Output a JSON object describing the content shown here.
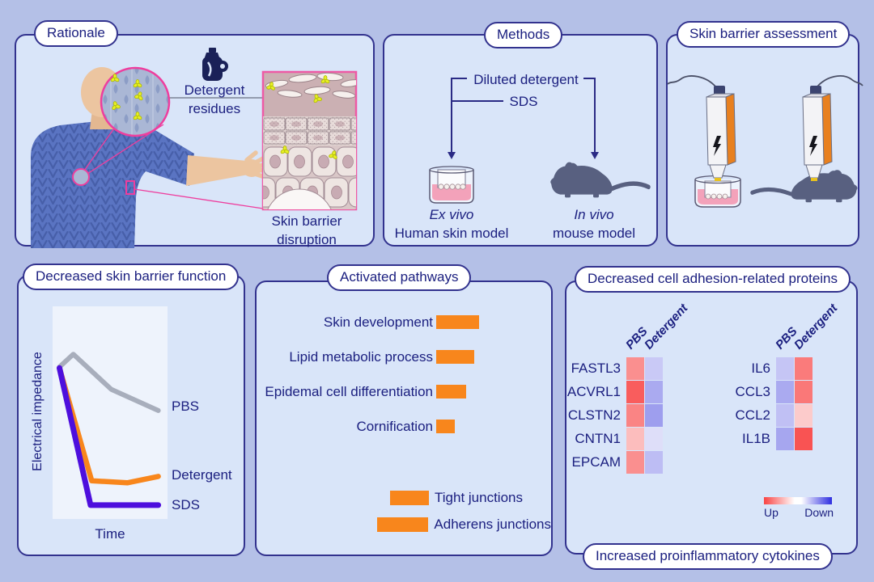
{
  "colors": {
    "background": "#b4c0e7",
    "panel": "#d9e5f9",
    "border": "#32328e",
    "ink": "#1c2080",
    "pink": "#ee3e9e",
    "orange": "#f8861c",
    "sds_purple": "#4d0edd",
    "pbs_gray": "#a8aebc",
    "mouse": "#586080",
    "device_orange": "#e8801f",
    "liquid_pink": "#f3a2ba",
    "residue_yellow": "#e7ee27"
  },
  "panels": {
    "rationale": {
      "title": "Rationale",
      "label_lines": [
        "Detergent",
        "residues"
      ],
      "caption_lines": [
        "Skin barrier",
        "disruption"
      ]
    },
    "methods": {
      "title": "Methods",
      "treatment1": "Diluted detergent",
      "treatment2": "SDS",
      "ex_lines": [
        "Ex vivo",
        "Human skin model"
      ],
      "in_lines": [
        "In vivo",
        "mouse model"
      ]
    },
    "assessment": {
      "title": "Skin barrier assessment"
    },
    "impedance": {
      "title": "Decreased skin barrier function"
    },
    "pathways": {
      "title": "Activated pathways"
    },
    "proteins": {
      "title": "Decreased cell adhesion-related proteins",
      "footer": "Increased proinflammatory cytokines"
    }
  },
  "chart_data": [
    {
      "id": "impedance",
      "type": "line",
      "title": "Decreased skin barrier function",
      "xlabel": "Time",
      "ylabel": "Electrical impedance",
      "axes_note": "qualitative axes, no tick labels; x and y normalized 0-1",
      "legend_position": "right of lines",
      "series": [
        {
          "name": "PBS",
          "color": "#a8aebc",
          "stroke_width": 6,
          "x": [
            0.06,
            0.18,
            0.51,
            0.92
          ],
          "y": [
            0.715,
            0.775,
            0.61,
            0.51
          ]
        },
        {
          "name": "Detergent",
          "color": "#f8861c",
          "stroke_width": 6.5,
          "x": [
            0.06,
            0.34,
            0.65,
            0.92
          ],
          "y": [
            0.71,
            0.18,
            0.17,
            0.2
          ]
        },
        {
          "name": "SDS",
          "color": "#4d0edd",
          "stroke_width": 7,
          "x": [
            0.06,
            0.33,
            0.92
          ],
          "y": [
            0.71,
            0.065,
            0.065
          ]
        }
      ]
    },
    {
      "id": "pathways",
      "type": "bar",
      "title": "Activated pathways",
      "bar_color": "#f8861c",
      "axes_note": "no axis; bar lengths in px, qualitative enrichment",
      "terms": [
        {
          "label": "Skin development",
          "value": 53
        },
        {
          "label": "Lipid metabolic process",
          "value": 47
        },
        {
          "label": "Epidemal cell differentiation",
          "value": 37
        },
        {
          "label": "Cornification",
          "value": 23
        }
      ],
      "junctions": [
        {
          "label": "Tight junctions",
          "value": 48
        },
        {
          "label": "Adherens junctions",
          "value": 64
        }
      ]
    },
    {
      "id": "protein-heatmaps",
      "type": "heatmap",
      "columns": [
        "PBS",
        "Detergent"
      ],
      "adhesion_rows": [
        {
          "gene": "FASTL3",
          "cells": [
            "#fa8f8f",
            "#c9c9f6"
          ]
        },
        {
          "gene": "ACVRL1",
          "cells": [
            "#f95d5d",
            "#aaaaf0"
          ]
        },
        {
          "gene": "CLSTN2",
          "cells": [
            "#fa8484",
            "#9e9eee"
          ]
        },
        {
          "gene": "CNTN1",
          "cells": [
            "#fcbdbd",
            "#dedef9"
          ]
        },
        {
          "gene": "EPCAM",
          "cells": [
            "#fa8f8f",
            "#bdbdf4"
          ]
        }
      ],
      "cytokine_rows": [
        {
          "gene": "IL6",
          "cells": [
            "#c5c5f5",
            "#fa7b7b"
          ]
        },
        {
          "gene": "CCL3",
          "cells": [
            "#aaaaf0",
            "#fa7878"
          ]
        },
        {
          "gene": "CCL2",
          "cells": [
            "#c0c0f4",
            "#fccbcb"
          ]
        },
        {
          "gene": "IL1B",
          "cells": [
            "#a6a6ef",
            "#f95353"
          ]
        }
      ],
      "legend": {
        "up_label": "Up",
        "down_label": "Down",
        "gradient": [
          "#f94343",
          "#ffffff",
          "#2e2ee0"
        ]
      }
    }
  ]
}
